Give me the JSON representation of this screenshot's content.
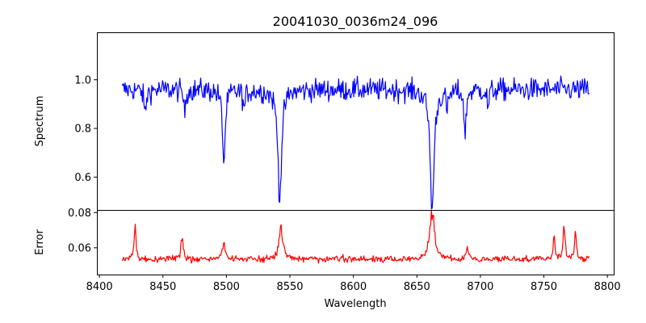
{
  "chart_data": {
    "title": "20041030_0036m24_096",
    "xlabel": "Wavelength",
    "x_ticks": [
      8400,
      8450,
      8500,
      8550,
      8600,
      8650,
      8700,
      8750,
      8800
    ],
    "xlim": [
      8398,
      8805
    ],
    "x_range": [
      8418,
      8786
    ],
    "panels": [
      {
        "name": "spectrum",
        "type": "line",
        "ylabel": "Spectrum",
        "color": "#0000ff",
        "ylim": [
          0.465,
          1.195
        ],
        "y_ticks": [
          0.6,
          0.8,
          1.0
        ],
        "y_tick_labels": [
          "0.6",
          "0.8",
          "1.0"
        ],
        "baseline": 0.96,
        "noise": 0.045,
        "lines": [
          {
            "center": 8436.0,
            "depth": 0.1,
            "width": 1.0
          },
          {
            "center": 8467.0,
            "depth": 0.1,
            "width": 0.8
          },
          {
            "center": 8498.0,
            "depth": 0.3,
            "width": 1.3
          },
          {
            "center": 8514.0,
            "depth": 0.08,
            "width": 1.0
          },
          {
            "center": 8542.0,
            "depth": 0.44,
            "width": 1.8
          },
          {
            "center": 8662.0,
            "depth": 0.5,
            "width": 1.8
          },
          {
            "center": 8674.0,
            "depth": 0.08,
            "width": 1.0
          },
          {
            "center": 8688.0,
            "depth": 0.2,
            "width": 0.9
          },
          {
            "center": 8706.0,
            "depth": 0.08,
            "width": 0.8
          }
        ]
      },
      {
        "name": "error",
        "type": "line",
        "ylabel": "Error",
        "color": "#ff0000",
        "ylim": [
          0.0448,
          0.0815
        ],
        "y_ticks": [
          0.06,
          0.08
        ],
        "y_tick_labels": [
          "0.06",
          "0.08"
        ],
        "baseline": 0.0535,
        "noise": 0.0018,
        "peaks": [
          {
            "center": 8428.0,
            "height": 0.018,
            "width": 1.0
          },
          {
            "center": 8465.0,
            "height": 0.014,
            "width": 1.0
          },
          {
            "center": 8498.0,
            "height": 0.011,
            "width": 1.2
          },
          {
            "center": 8543.0,
            "height": 0.016,
            "width": 2.0
          },
          {
            "center": 8662.0,
            "height": 0.025,
            "width": 2.2
          },
          {
            "center": 8690.0,
            "height": 0.006,
            "width": 1.0
          },
          {
            "center": 8758.0,
            "height": 0.012,
            "width": 1.0
          },
          {
            "center": 8766.0,
            "height": 0.018,
            "width": 0.9
          },
          {
            "center": 8775.0,
            "height": 0.015,
            "width": 0.9
          }
        ]
      }
    ]
  }
}
